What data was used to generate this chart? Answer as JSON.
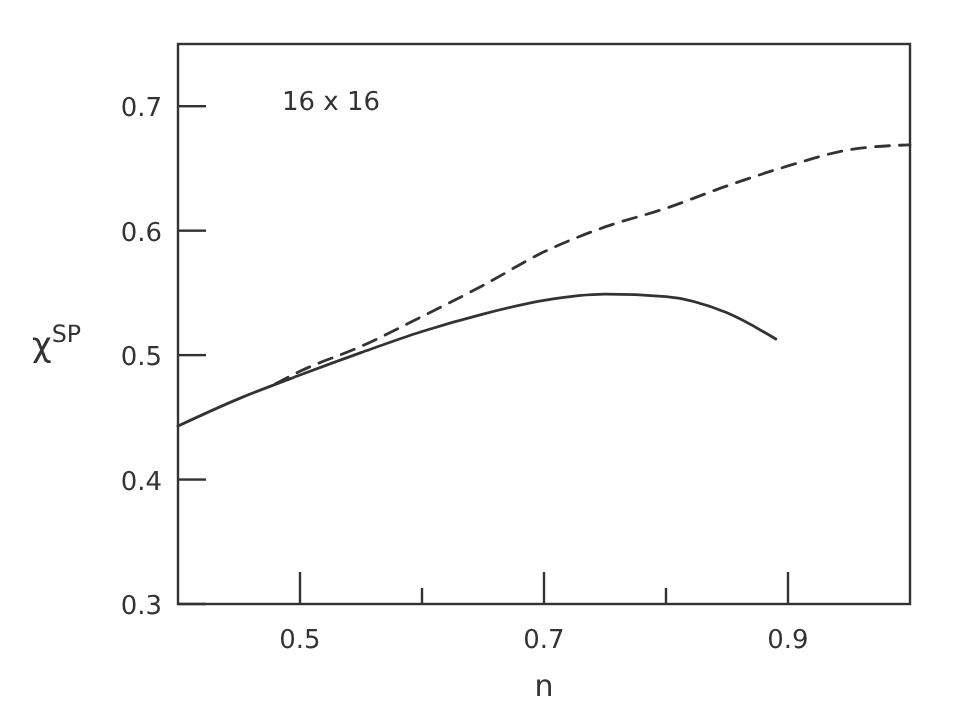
{
  "chart_data": {
    "type": "line",
    "xlabel": "n",
    "ylabel": "χ$^{SP}$",
    "annotations": [
      "16 x 16"
    ],
    "xlim": [
      0.4,
      1.0
    ],
    "ylim": [
      0.3,
      0.75
    ],
    "xticks": [
      {
        "value": 0.5,
        "label": "0.5"
      },
      {
        "value": 0.6,
        "label": null
      },
      {
        "value": 0.7,
        "label": "0.7"
      },
      {
        "value": 0.8,
        "label": null
      },
      {
        "value": 0.9,
        "label": "0.9"
      }
    ],
    "yticks": [
      {
        "value": 0.3,
        "label": "0.3"
      },
      {
        "value": 0.4,
        "label": "0.4"
      },
      {
        "value": 0.5,
        "label": "0.5"
      },
      {
        "value": 0.6,
        "label": "0.6"
      },
      {
        "value": 0.7,
        "label": "0.7"
      }
    ],
    "marker": "none",
    "series": [
      {
        "color": "#333333",
        "line_style": "solid",
        "x": [
          0.4,
          0.45,
          0.5,
          0.55,
          0.6,
          0.65,
          0.7,
          0.75,
          0.8,
          0.85,
          0.89
        ],
        "values": [
          0.443,
          0.465,
          0.484,
          0.502,
          0.519,
          0.533,
          0.544,
          0.549,
          0.547,
          0.534,
          0.513
        ]
      },
      {
        "color": "#333333",
        "line_style": "dashed",
        "x": [
          0.48,
          0.5,
          0.55,
          0.6,
          0.65,
          0.7,
          0.75,
          0.8,
          0.85,
          0.9,
          0.95,
          1.0
        ],
        "values": [
          0.477,
          0.487,
          0.507,
          0.531,
          0.556,
          0.583,
          0.603,
          0.618,
          0.636,
          0.652,
          0.665,
          0.669
        ]
      }
    ]
  }
}
